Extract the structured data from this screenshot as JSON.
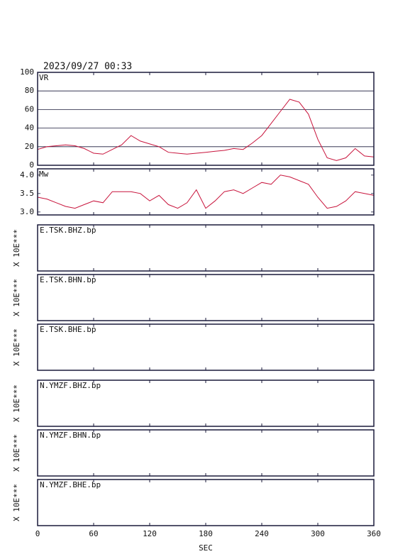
{
  "title": "2023/09/27  00:33",
  "chart_data": [
    {
      "type": "line",
      "x": [
        0,
        10,
        20,
        30,
        40,
        50,
        60,
        70,
        80,
        90,
        100,
        110,
        120,
        130,
        140,
        150,
        160,
        170,
        180,
        190,
        200,
        210,
        220,
        230,
        240,
        250,
        260,
        270,
        280,
        290,
        300,
        310,
        320,
        330,
        340,
        350,
        360
      ],
      "xlim": [
        0,
        360
      ],
      "series": [
        {
          "name": "VR",
          "color": "#c8143c",
          "values": [
            17,
            20,
            21,
            22,
            21,
            18,
            13,
            12,
            17,
            22,
            32,
            26,
            23,
            20,
            14,
            13,
            12,
            13,
            14,
            15,
            16,
            18,
            17,
            24,
            32,
            45,
            58,
            71,
            68,
            55,
            28,
            8,
            5,
            8,
            18,
            10,
            9
          ]
        }
      ],
      "ylim": [
        0,
        100
      ],
      "yticks": [
        0,
        20,
        40,
        60,
        80,
        100
      ],
      "grid": true
    },
    {
      "type": "line",
      "x": [
        0,
        10,
        20,
        30,
        40,
        50,
        60,
        70,
        80,
        90,
        100,
        110,
        120,
        130,
        140,
        150,
        160,
        170,
        180,
        190,
        200,
        210,
        220,
        230,
        240,
        250,
        260,
        270,
        280,
        290,
        300,
        310,
        320,
        330,
        340,
        350,
        360
      ],
      "xlim": [
        0,
        360
      ],
      "series": [
        {
          "name": "Mw",
          "color": "#c8143c",
          "values": [
            3.4,
            3.35,
            3.25,
            3.15,
            3.1,
            3.2,
            3.3,
            3.25,
            3.55,
            3.55,
            3.55,
            3.5,
            3.3,
            3.45,
            3.2,
            3.1,
            3.25,
            3.6,
            3.1,
            3.3,
            3.55,
            3.6,
            3.5,
            3.65,
            3.8,
            3.75,
            4.0,
            3.95,
            3.85,
            3.75,
            3.4,
            3.1,
            3.15,
            3.3,
            3.55,
            3.5,
            3.45
          ]
        }
      ],
      "ylim": [
        2.92,
        4.17
      ],
      "yticks": [
        {
          "value": 3,
          "label": "3.0"
        },
        3.5,
        {
          "value": 4,
          "label": "4.0"
        }
      ],
      "grid": false
    }
  ],
  "traces": [
    {
      "label": "E.TSK.BHZ.bp",
      "scale": "X 10E***"
    },
    {
      "label": "E.TSK.BHN.bp",
      "scale": "X 10E***"
    },
    {
      "label": "E.TSK.BHE.bp",
      "scale": "X 10E***"
    },
    {
      "label": "N.YMZF.BHZ.bp",
      "scale": "X 10E***"
    },
    {
      "label": "N.YMZF.BHN.bp",
      "scale": "X 10E***"
    },
    {
      "label": "N.YMZF.BHE.bp",
      "scale": "X 10E***"
    }
  ],
  "time_axis": {
    "label": "SEC",
    "xlim": [
      0,
      360
    ],
    "xticks": [
      0,
      60,
      120,
      180,
      240,
      300,
      360
    ]
  }
}
